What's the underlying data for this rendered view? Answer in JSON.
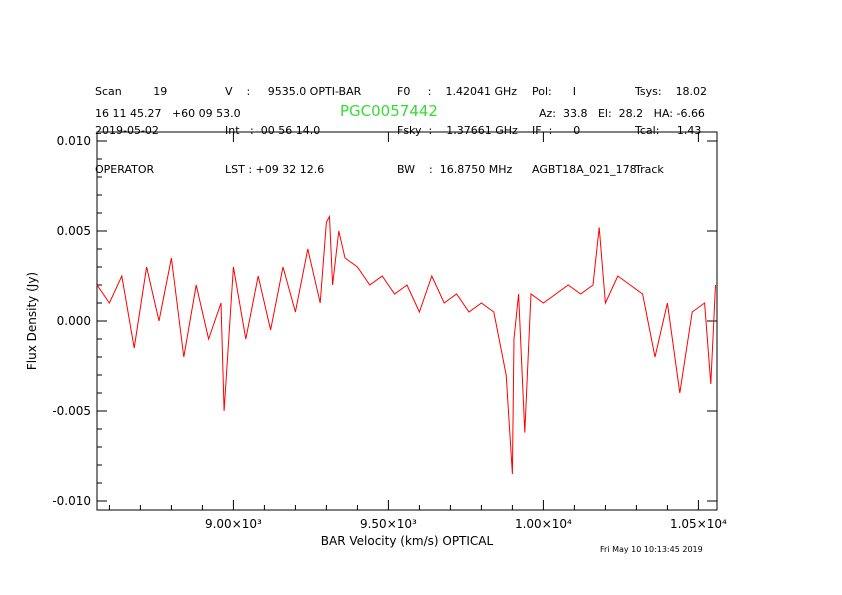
{
  "header": {
    "col1": [
      "Scan         19",
      "2019-05-02",
      "OPERATOR"
    ],
    "col2": [
      "V    :     9535.0 OPTI-BAR",
      "Int   :  00 56 14.0",
      "LST : +09 32 12.6"
    ],
    "col3": [
      "F0     :    1.42041 GHz",
      "Fsky  :    1.37661 GHz",
      "BW    :  16.8750 MHz"
    ],
    "col4": [
      "Pol:      I",
      "IF  :      0",
      "AGBT18A_021_178"
    ],
    "col5": [
      "Tsys:    18.02",
      "Tcal:     1.43",
      "Track"
    ],
    "coords": "16 11 45.27   +60 09 53.0",
    "source": "PGC0057442",
    "azel": "Az:  33.8   El:  28.2   HA: -6.66"
  },
  "timestamp": "Fri May 10 10:13:45 2019",
  "colors": {
    "trace": "#ff0000",
    "source": "#33dd33",
    "axes": "#000000"
  },
  "chart_data": {
    "type": "line",
    "xlabel": "BAR Velocity (km/s) OPTICAL",
    "ylabel": "Flux Density (Jy)",
    "xlim": [
      8560,
      10560
    ],
    "ylim": [
      -0.0105,
      0.0105
    ],
    "xticks": [
      {
        "value": 9000,
        "label": "9.00×10³"
      },
      {
        "value": 9500,
        "label": "9.50×10³"
      },
      {
        "value": 10000,
        "label": "1.00×10⁴"
      },
      {
        "value": 10500,
        "label": "1.05×10⁴"
      }
    ],
    "yticks": [
      {
        "value": 0.01,
        "label": "0.010"
      },
      {
        "value": 0.005,
        "label": "0.005"
      },
      {
        "value": 0.0,
        "label": "0.000"
      },
      {
        "value": -0.005,
        "label": "-0.005"
      },
      {
        "value": -0.01,
        "label": "-0.010"
      }
    ],
    "series": [
      {
        "x": [
          8560,
          8600,
          8640,
          8680,
          8720,
          8760,
          8800,
          8840,
          8880,
          8920,
          8960,
          8970,
          9000,
          9040,
          9080,
          9120,
          9160,
          9200,
          9240,
          9280,
          9300,
          9310,
          9320,
          9340,
          9360,
          9400,
          9440,
          9480,
          9520,
          9560,
          9600,
          9640,
          9680,
          9720,
          9760,
          9800,
          9840,
          9880,
          9900,
          9905,
          9920,
          9940,
          9960,
          10000,
          10040,
          10080,
          10120,
          10160,
          10180,
          10200,
          10240,
          10280,
          10320,
          10360,
          10400,
          10440,
          10480,
          10520,
          10540,
          10555
        ],
        "y": [
          0.002,
          0.001,
          0.0025,
          -0.0015,
          0.003,
          0.0,
          0.0035,
          -0.002,
          0.002,
          -0.001,
          0.001,
          -0.005,
          0.003,
          -0.001,
          0.0025,
          -0.0005,
          0.003,
          0.0005,
          0.004,
          0.001,
          0.0055,
          0.0058,
          0.002,
          0.005,
          0.0035,
          0.003,
          0.002,
          0.0025,
          0.0015,
          0.002,
          0.0005,
          0.0025,
          0.001,
          0.0015,
          0.0005,
          0.001,
          0.0005,
          -0.003,
          -0.0085,
          -0.001,
          0.0015,
          -0.0062,
          0.0015,
          0.001,
          0.0015,
          0.002,
          0.0015,
          0.002,
          0.0052,
          0.001,
          0.0025,
          0.002,
          0.0015,
          -0.002,
          0.001,
          -0.004,
          0.0005,
          0.001,
          -0.0035,
          0.002
        ]
      }
    ]
  }
}
